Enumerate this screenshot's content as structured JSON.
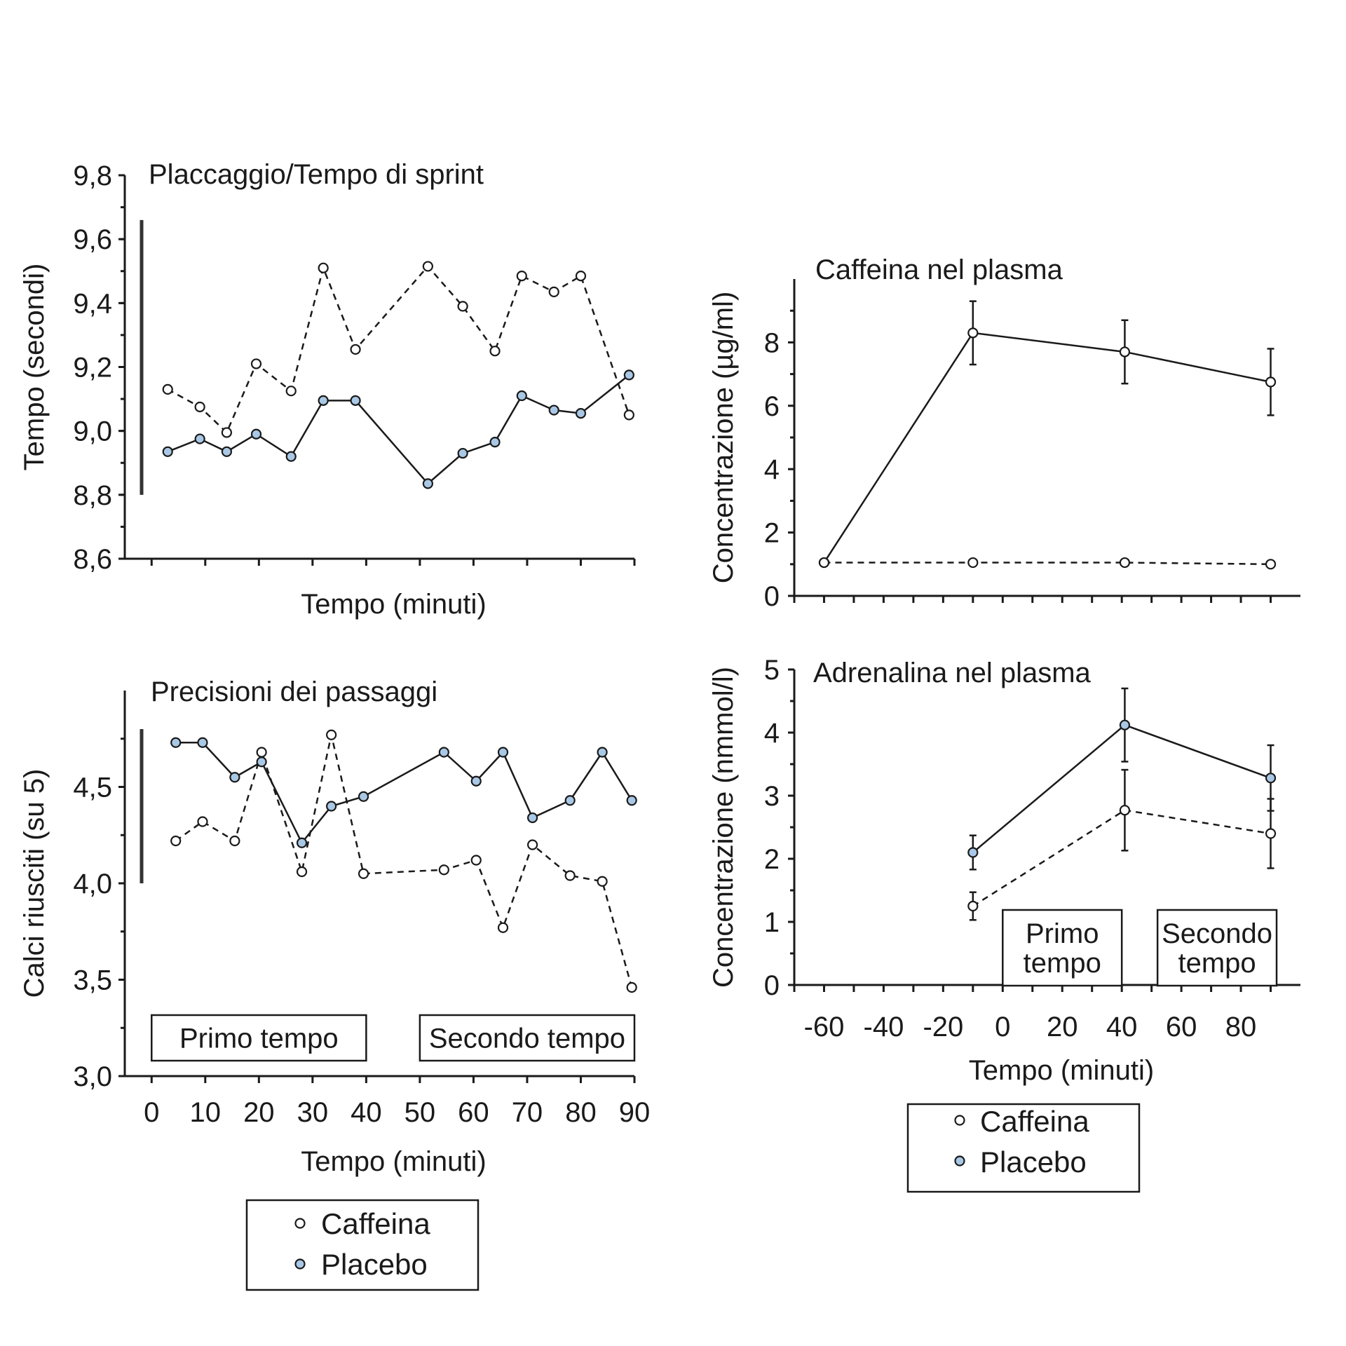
{
  "colors": {
    "ink": "#1a1a1a",
    "placebo_marker_fill": "#a9c8e6",
    "caffeina_marker_fill": "#ffffff"
  },
  "legend_left": {
    "items": [
      "Caffeina",
      "Placebo"
    ]
  },
  "legend_right": {
    "items": [
      "Caffeina",
      "Placebo"
    ]
  },
  "chart_data": [
    {
      "id": "sprint",
      "type": "line",
      "title": "Placcaggio/Tempo di sprint",
      "xlabel": "Tempo (minuti)",
      "ylabel": "Tempo (secondi)",
      "xlim": [
        -5,
        90
      ],
      "ylim": [
        8.6,
        9.8
      ],
      "yticks": [
        8.6,
        8.8,
        9.0,
        9.2,
        9.4,
        9.6,
        9.8
      ],
      "ytick_labels": [
        "8,6",
        "8,8",
        "9,0",
        "9,2",
        "9,4",
        "9,6",
        "9,8"
      ],
      "xtick_values": [
        0,
        10,
        20,
        30,
        40,
        50,
        60,
        70,
        80,
        90
      ],
      "xtick_labels": [],
      "grid": false,
      "scale_bar_range": [
        8.8,
        9.66
      ],
      "series": [
        {
          "name": "Caffeina",
          "style": "dashed",
          "marker": "open",
          "x": [
            3,
            9,
            14,
            19.5,
            26,
            32,
            38,
            51.5,
            58,
            64,
            69,
            75,
            80,
            89
          ],
          "y": [
            9.13,
            9.075,
            8.995,
            9.21,
            9.125,
            9.51,
            9.255,
            9.515,
            9.39,
            9.25,
            9.485,
            9.435,
            9.485,
            9.05
          ]
        },
        {
          "name": "Placebo",
          "style": "solid",
          "marker": "filled",
          "x": [
            3,
            9,
            14,
            19.5,
            26,
            32,
            38,
            51.5,
            58,
            64,
            69,
            75,
            80,
            89
          ],
          "y": [
            8.935,
            8.975,
            8.935,
            8.99,
            8.92,
            9.095,
            9.095,
            8.835,
            8.93,
            8.965,
            9.11,
            9.065,
            9.055,
            9.175
          ]
        }
      ]
    },
    {
      "id": "passaggi",
      "type": "line",
      "title": "Precisioni dei passaggi",
      "xlabel": "Tempo (minuti)",
      "ylabel": "Calci riusciti (su 5)",
      "xlim": [
        -5,
        90
      ],
      "ylim": [
        3.0,
        5.0
      ],
      "yticks": [
        3.0,
        3.5,
        4.0,
        4.5
      ],
      "ytick_labels": [
        "3,0",
        "3,5",
        "4,0",
        "4,5"
      ],
      "xtick_values": [
        0,
        10,
        20,
        30,
        40,
        50,
        60,
        70,
        80,
        90
      ],
      "xtick_labels": [
        "0",
        "10",
        "20",
        "30",
        "40",
        "50",
        "60",
        "70",
        "80",
        "90"
      ],
      "grid": false,
      "scale_bar_range": [
        4.0,
        4.8
      ],
      "annotations": [
        {
          "text": "Primo tempo",
          "x_range": [
            0,
            40
          ]
        },
        {
          "text": "Secondo tempo",
          "x_range": [
            50,
            90
          ]
        }
      ],
      "series": [
        {
          "name": "Caffeina",
          "style": "dashed",
          "marker": "open",
          "x": [
            4.5,
            9.5,
            15.5,
            20.5,
            28,
            33.5,
            39.5,
            54.5,
            60.5,
            65.5,
            71,
            78,
            84,
            89.5
          ],
          "y": [
            4.22,
            4.32,
            4.22,
            4.68,
            4.06,
            4.77,
            4.05,
            4.07,
            4.12,
            3.77,
            4.2,
            4.04,
            4.01,
            3.46
          ]
        },
        {
          "name": "Placebo",
          "style": "solid",
          "marker": "filled",
          "x": [
            4.5,
            9.5,
            15.5,
            20.5,
            28,
            33.5,
            39.5,
            54.5,
            60.5,
            65.5,
            71,
            78,
            84,
            89.5
          ],
          "y": [
            4.73,
            4.73,
            4.55,
            4.63,
            4.21,
            4.4,
            4.45,
            4.68,
            4.53,
            4.68,
            4.34,
            4.43,
            4.68,
            4.43
          ]
        }
      ]
    },
    {
      "id": "caffeina_plasma",
      "type": "line",
      "title": "Caffeina nel plasma",
      "xlabel": "",
      "ylabel": "Concentrazione (µg/ml)",
      "xlim": [
        -70,
        100
      ],
      "ylim": [
        0,
        10
      ],
      "yticks": [
        0,
        2,
        4,
        6,
        8
      ],
      "ytick_labels": [
        "0",
        "2",
        "4",
        "6",
        "8"
      ],
      "yminor": [
        1,
        3,
        5,
        7,
        9
      ],
      "xtick_values": [
        -70,
        -60,
        -50,
        -40,
        -30,
        -20,
        -10,
        0,
        10,
        20,
        30,
        40,
        50,
        60,
        70,
        80,
        90
      ],
      "xtick_labels": [],
      "grid": false,
      "series": [
        {
          "name": "Caffeina",
          "style": "solid",
          "marker": "open",
          "x": [
            -60,
            -10,
            41,
            90
          ],
          "y": [
            1.05,
            8.3,
            7.7,
            6.75
          ],
          "err": [
            0,
            1.0,
            1.0,
            1.05
          ]
        },
        {
          "name": "Placebo",
          "style": "dashed",
          "marker": "open",
          "x": [
            -60,
            -10,
            41,
            90
          ],
          "y": [
            1.05,
            1.05,
            1.05,
            1.0
          ],
          "err": [
            0,
            0,
            0,
            0
          ]
        }
      ]
    },
    {
      "id": "adrenalina_plasma",
      "type": "line",
      "title": "Adrenalina nel plasma",
      "xlabel": "Tempo (minuti)",
      "ylabel": "Concentrazione (nmmol/l)",
      "xlim": [
        -70,
        100
      ],
      "ylim": [
        0,
        5
      ],
      "yticks": [
        0,
        1,
        2,
        3,
        4,
        5
      ],
      "ytick_labels": [
        "0",
        "1",
        "2",
        "3",
        "4",
        "5"
      ],
      "yminor": [
        0.5,
        1.5,
        2.5,
        3.5,
        4.5
      ],
      "xtick_values": [
        -70,
        -60,
        -50,
        -40,
        -30,
        -20,
        -10,
        0,
        10,
        20,
        30,
        40,
        50,
        60,
        70,
        80,
        90
      ],
      "xtick_labels": [
        "-60",
        "-40",
        "-20",
        "0",
        "20",
        "40",
        "60",
        "80"
      ],
      "xtick_label_values": [
        -60,
        -40,
        -20,
        0,
        20,
        40,
        60,
        80
      ],
      "grid": false,
      "annotations": [
        {
          "text": "Primo\ntempo",
          "x_range": [
            0,
            40
          ]
        },
        {
          "text": "Secondo\ntempo",
          "x_range": [
            52,
            92
          ]
        }
      ],
      "series": [
        {
          "name": "Placebo",
          "style": "solid",
          "marker": "filled",
          "x": [
            -10,
            41,
            90
          ],
          "y": [
            2.1,
            4.12,
            3.28
          ],
          "err": [
            0.27,
            0.58,
            0.52
          ]
        },
        {
          "name": "Caffeina",
          "style": "dashed",
          "marker": "open",
          "x": [
            -10,
            41,
            90
          ],
          "y": [
            1.25,
            2.77,
            2.4
          ],
          "err": [
            0.22,
            0.64,
            0.55
          ]
        }
      ]
    }
  ]
}
